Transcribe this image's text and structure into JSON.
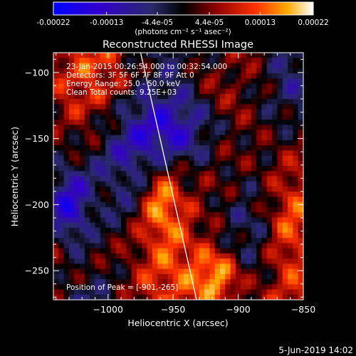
{
  "colorbar": {
    "tick_labels": [
      "-0.00022",
      "-0.00013",
      "-4.4e-05",
      "4.4e-05",
      "0.00013",
      "0.00022"
    ],
    "tick_values": [
      -0.00022,
      -0.00013,
      -4.4e-05,
      4.4e-05,
      0.00013,
      0.00022
    ],
    "range": [
      -0.00022,
      0.00022
    ],
    "units_label": "(photons cm⁻² s⁻¹ asec⁻²)"
  },
  "chart_data": {
    "type": "heatmap",
    "title": "Reconstructed RHESSI Image",
    "xlabel": "Heliocentric X (arcsec)",
    "ylabel": "Heliocentric Y (arcsec)",
    "xlim": [
      -1042,
      -850
    ],
    "ylim": [
      -272,
      -85
    ],
    "x_ticks": [
      -1000,
      -950,
      -900,
      -850
    ],
    "x_tick_labels": [
      "−1000",
      "−950",
      "−900",
      "−850"
    ],
    "y_ticks": [
      -100,
      -150,
      -200,
      -250
    ],
    "y_tick_labels": [
      "−100",
      "−150",
      "−200",
      "−250"
    ],
    "limb_line": [
      [
        -975,
        -85
      ],
      [
        -932,
        -272
      ]
    ],
    "annotations": [
      "23-Jan-2015 00:26:54.000 to 00:32:54.000",
      "Detectors: 3F 5F 6F 7F 8F 9F Att 0",
      "Energy Range: 25.0 - 50.0 keV",
      "Clean    Total counts: 9.25E+03"
    ],
    "peak_label": "Position of Peak = [-901,-265]",
    "peak_position": [
      -901,
      -265
    ]
  },
  "footer": {
    "date": "5-Jun-2019 14:02"
  }
}
